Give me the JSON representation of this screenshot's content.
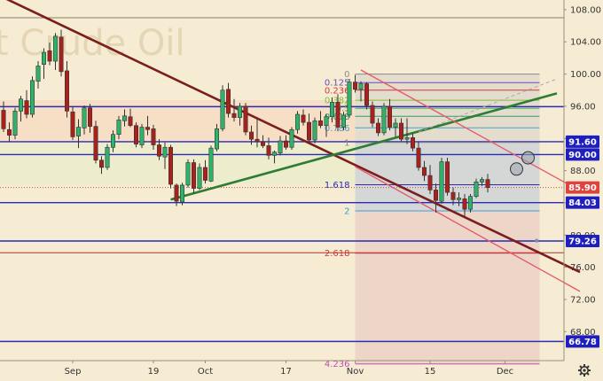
{
  "chart_data": {
    "type": "candlestick",
    "title": "t Crude Oil",
    "ylim": [
      64.4,
      109.2
    ],
    "y_ticks": [
      68,
      72,
      76,
      80,
      84,
      88,
      92,
      96,
      100,
      104,
      108
    ],
    "y_tick_labels": [
      "68.00",
      "72.00",
      "76.00",
      "80.00",
      "84.00",
      "88.00",
      "92.00",
      "96.00",
      "100.00",
      "104.00",
      "108.00"
    ],
    "x_ticks": [
      {
        "label": "Sep",
        "index": 12
      },
      {
        "label": "19",
        "index": 26
      },
      {
        "label": "Oct",
        "index": 35
      },
      {
        "label": "17",
        "index": 49
      },
      {
        "label": "Nov",
        "index": 61
      },
      {
        "label": "15",
        "index": 74
      },
      {
        "label": "Dec",
        "index": 87
      }
    ],
    "candles": [
      [
        95.5,
        96.6,
        92.8,
        93.2
      ],
      [
        93.1,
        94.0,
        91.6,
        92.4
      ],
      [
        92.4,
        95.8,
        91.9,
        95.4
      ],
      [
        95.4,
        97.3,
        94.1,
        96.9
      ],
      [
        96.7,
        98.0,
        94.5,
        95.0
      ],
      [
        95.0,
        99.7,
        94.6,
        99.2
      ],
      [
        99.1,
        101.6,
        98.2,
        101.0
      ],
      [
        101.2,
        103.2,
        99.4,
        102.7
      ],
      [
        102.9,
        103.9,
        101.1,
        101.6
      ],
      [
        101.6,
        105.1,
        100.5,
        104.7
      ],
      [
        104.6,
        105.5,
        99.7,
        100.3
      ],
      [
        100.4,
        101.6,
        94.6,
        95.4
      ],
      [
        95.3,
        96.0,
        91.8,
        92.2
      ],
      [
        92.3,
        94.4,
        90.8,
        93.4
      ],
      [
        93.3,
        96.1,
        92.5,
        95.8
      ],
      [
        95.8,
        96.3,
        92.7,
        93.5
      ],
      [
        93.5,
        94.2,
        88.9,
        89.3
      ],
      [
        89.3,
        89.8,
        87.6,
        88.4
      ],
      [
        88.4,
        91.3,
        88.1,
        90.9
      ],
      [
        90.9,
        93.0,
        90.3,
        92.5
      ],
      [
        92.5,
        94.8,
        91.9,
        94.3
      ],
      [
        94.2,
        95.6,
        93.5,
        94.8
      ],
      [
        94.7,
        95.7,
        93.4,
        93.6
      ],
      [
        93.6,
        94.0,
        90.9,
        91.3
      ],
      [
        91.2,
        93.8,
        90.8,
        93.4
      ],
      [
        93.4,
        94.8,
        92.4,
        93.1
      ],
      [
        93.2,
        93.7,
        90.6,
        91.2
      ],
      [
        91.2,
        91.9,
        89.3,
        89.8
      ],
      [
        89.7,
        91.5,
        88.2,
        90.9
      ],
      [
        90.9,
        91.2,
        85.8,
        86.3
      ],
      [
        86.2,
        86.4,
        83.6,
        84.2
      ],
      [
        84.1,
        86.5,
        83.7,
        86.2
      ],
      [
        86.2,
        89.4,
        85.9,
        89.0
      ],
      [
        89.0,
        89.4,
        85.2,
        85.8
      ],
      [
        85.8,
        88.9,
        85.6,
        88.4
      ],
      [
        88.4,
        89.3,
        86.4,
        86.8
      ],
      [
        86.7,
        91.1,
        86.6,
        90.8
      ],
      [
        90.7,
        93.8,
        90.4,
        93.2
      ],
      [
        93.2,
        98.6,
        92.9,
        98.0
      ],
      [
        98.1,
        98.9,
        94.6,
        95.1
      ],
      [
        95.1,
        96.9,
        94.1,
        94.6
      ],
      [
        94.6,
        96.4,
        93.6,
        96.0
      ],
      [
        96.0,
        96.4,
        92.4,
        92.8
      ],
      [
        92.8,
        93.6,
        91.2,
        91.9
      ],
      [
        91.9,
        94.4,
        90.9,
        91.6
      ],
      [
        91.6,
        92.4,
        90.8,
        91.1
      ],
      [
        91.1,
        92.1,
        89.4,
        89.9
      ],
      [
        89.9,
        90.5,
        88.9,
        90.3
      ],
      [
        90.2,
        92.3,
        89.9,
        91.7
      ],
      [
        91.7,
        92.4,
        90.6,
        90.9
      ],
      [
        90.9,
        93.4,
        90.6,
        93.1
      ],
      [
        93.1,
        95.4,
        92.6,
        95.0
      ],
      [
        94.9,
        95.6,
        93.6,
        94.0
      ],
      [
        94.0,
        95.1,
        91.6,
        91.8
      ],
      [
        91.8,
        94.6,
        91.4,
        94.2
      ],
      [
        94.2,
        95.4,
        93.3,
        93.6
      ],
      [
        93.6,
        95.0,
        92.2,
        94.7
      ],
      [
        94.7,
        97.1,
        94.0,
        96.5
      ],
      [
        96.5,
        97.5,
        92.9,
        93.4
      ],
      [
        93.4,
        95.3,
        93.0,
        94.9
      ],
      [
        94.9,
        99.4,
        94.6,
        99.0
      ],
      [
        99.0,
        99.9,
        97.7,
        98.1
      ],
      [
        98.1,
        99.1,
        96.6,
        98.8
      ],
      [
        98.8,
        99.0,
        95.6,
        96.1
      ],
      [
        96.1,
        96.6,
        93.4,
        93.9
      ],
      [
        93.9,
        94.5,
        92.3,
        92.7
      ],
      [
        92.7,
        96.4,
        92.4,
        96.0
      ],
      [
        96.0,
        96.9,
        93.0,
        93.4
      ],
      [
        93.4,
        94.5,
        92.2,
        93.9
      ],
      [
        93.9,
        94.5,
        91.6,
        91.9
      ],
      [
        91.9,
        94.5,
        91.3,
        92.1
      ],
      [
        92.1,
        92.6,
        90.4,
        90.8
      ],
      [
        90.8,
        91.6,
        88.0,
        88.4
      ],
      [
        88.4,
        89.2,
        86.7,
        87.4
      ],
      [
        87.4,
        88.7,
        85.1,
        85.6
      ],
      [
        85.6,
        86.4,
        82.8,
        84.3
      ],
      [
        84.2,
        89.6,
        83.9,
        89.1
      ],
      [
        89.1,
        89.6,
        84.9,
        85.3
      ],
      [
        85.3,
        85.9,
        83.7,
        84.4
      ],
      [
        84.4,
        85.3,
        83.6,
        84.6
      ],
      [
        84.5,
        85.1,
        82.3,
        83.2
      ],
      [
        83.2,
        85.1,
        82.8,
        84.8
      ],
      [
        84.8,
        87.0,
        84.6,
        86.6
      ],
      [
        86.6,
        87.2,
        86.1,
        86.9
      ],
      [
        86.9,
        87.6,
        85.3,
        85.9
      ]
    ],
    "current_price": 85.9,
    "price_labels": [
      {
        "value": 91.6,
        "text": "91.60",
        "color": "#1f1fbf"
      },
      {
        "value": 90.0,
        "text": "90.00",
        "color": "#1f1fbf"
      },
      {
        "value": 85.9,
        "text": "85.90",
        "color": "#e0423d"
      },
      {
        "value": 84.03,
        "text": "84.03",
        "color": "#1f1fbf"
      },
      {
        "value": 79.26,
        "text": "79.26",
        "color": "#1f1fbf"
      },
      {
        "value": 66.78,
        "text": "66.78",
        "color": "#1f1fbf"
      }
    ],
    "horizontal_lines": [
      {
        "value": 107.0,
        "color": "#8b7d6b"
      },
      {
        "value": 95.95,
        "color": "#2a2ab8"
      },
      {
        "value": 91.6,
        "color": "#2a2ab8"
      },
      {
        "value": 90.0,
        "color": "#2a2ab8"
      },
      {
        "value": 84.03,
        "color": "#2a2ab8"
      },
      {
        "value": 79.26,
        "color": "#2a2ab8"
      },
      {
        "value": 77.8,
        "color": "#b03030"
      },
      {
        "value": 66.78,
        "color": "#2a2ab8"
      }
    ],
    "fibonacci": {
      "top_price": 100.0,
      "one_price": 91.5,
      "start_index": 61,
      "end_index": 93,
      "levels": [
        {
          "label": "0",
          "value": 0,
          "color": "#8a8a8a"
        },
        {
          "label": "0.125",
          "value": 0.125,
          "color": "#6a4ab8"
        },
        {
          "label": "0.236",
          "value": 0.236,
          "color": "#d03a3a"
        },
        {
          "label": "0.382",
          "value": 0.382,
          "color": "#7fbf3a"
        },
        {
          "label": "0.5",
          "value": 0.5,
          "color": "#4bb54b"
        },
        {
          "label": "0.618",
          "value": 0.618,
          "color": "#2e9e6a"
        },
        {
          "label": "0.786",
          "value": 0.786,
          "color": "#4aa0c8"
        },
        {
          "label": "1",
          "value": 1,
          "color": "#8a8a8a"
        },
        {
          "label": "1.618",
          "value": 1.618,
          "color": "#2a2ab8"
        },
        {
          "label": "2",
          "value": 2,
          "color": "#3aa0d8"
        },
        {
          "label": "2.618",
          "value": 2.618,
          "color": "#d03a3a"
        },
        {
          "label": "4.236",
          "value": 4.236,
          "color": "#c04ab8"
        }
      ]
    },
    "trendlines": [
      {
        "from": [
          0,
          109.5
        ],
        "to": [
          100,
          75.4
        ],
        "color": "#7a1e1e"
      },
      {
        "from": [
          29,
          84.4
        ],
        "to": [
          96,
          97.6
        ],
        "color": "#2e7d32"
      }
    ],
    "channel_lines": [
      {
        "from": [
          62,
          100.5
        ],
        "to": [
          100,
          85.5
        ],
        "color": "#e65a6a"
      },
      {
        "from": [
          61,
          88.5
        ],
        "to": [
          100,
          73.0
        ],
        "color": "#e65a6a"
      }
    ],
    "dashed_lines": [
      {
        "from": [
          72,
          92.8
        ],
        "to": [
          96,
          99.4
        ],
        "color": "#aaaaaa"
      }
    ],
    "markers": [
      {
        "index": 89,
        "value": 88.2
      },
      {
        "index": 91,
        "value": 89.6
      }
    ],
    "target_dot": {
      "index": 92.5,
      "value": 79.3
    }
  },
  "ui": {
    "settings_icon": "gear-icon"
  }
}
